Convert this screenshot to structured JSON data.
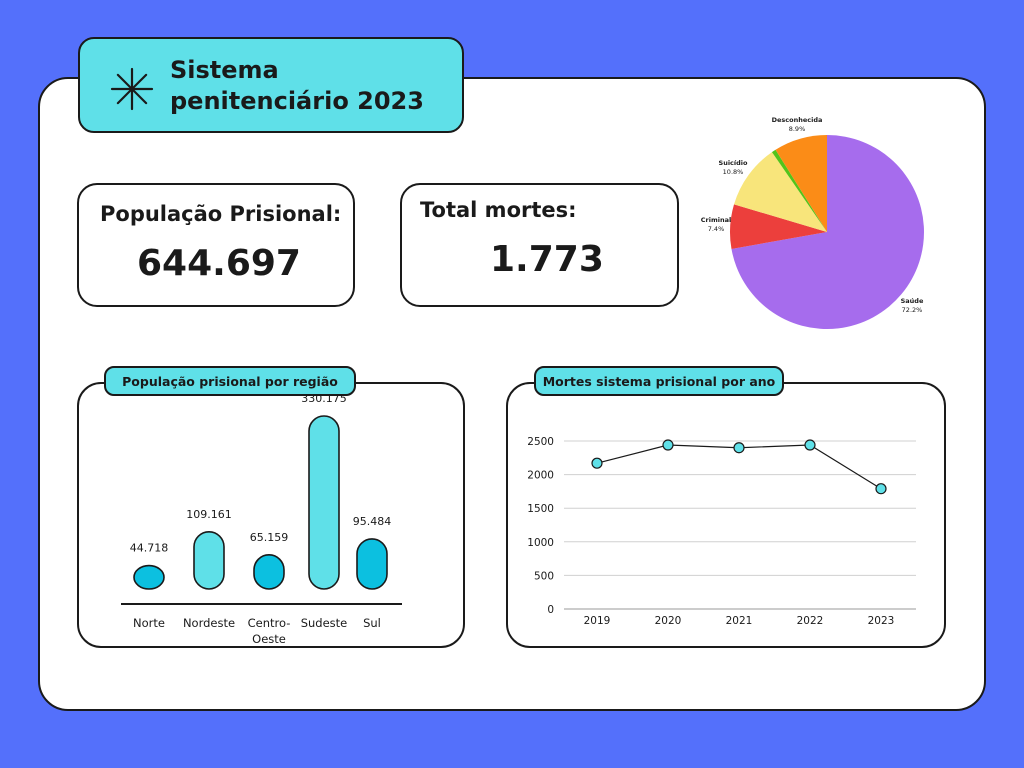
{
  "header": {
    "title_line1": "Sistema",
    "title_line2": "penitenciário 2023",
    "icon": "asterisk-icon"
  },
  "stats": {
    "population": {
      "label": "População Prisional:",
      "value": "644.697"
    },
    "deaths": {
      "label": "Total mortes:",
      "value": "1.773"
    }
  },
  "colors": {
    "background": "#5470fb",
    "accent": "#5fe0e8",
    "bar_alt": "#0cc0e0"
  },
  "chart_data": [
    {
      "type": "pie",
      "categories": [
        "Saúde",
        "Criminal",
        "Suicídio",
        "",
        "Desconhecida"
      ],
      "values": [
        72.2,
        7.4,
        10.8,
        0.7,
        8.9
      ],
      "labels": [
        {
          "name": "Saúde",
          "value": "72.2%"
        },
        {
          "name": "Criminal",
          "value": "7.4%"
        },
        {
          "name": "Suicídio",
          "value": "10.8%"
        },
        {
          "name": "Desconhecida",
          "value": "8.9%"
        }
      ],
      "colors": [
        "#a66ced",
        "#ec3f3c",
        "#f8e57b",
        "#52c41a",
        "#fb8c17"
      ]
    },
    {
      "type": "bar",
      "title": "População prisional por região",
      "categories": [
        "Norte",
        "Nordeste",
        "Centro-Oeste",
        "Sudeste",
        "Sul"
      ],
      "category_lines": [
        [
          "Norte"
        ],
        [
          "Nordeste"
        ],
        [
          "Centro-",
          "Oeste"
        ],
        [
          "Sudeste"
        ],
        [
          "Sul"
        ]
      ],
      "values": [
        44718,
        109161,
        65159,
        330175,
        95484
      ],
      "value_labels": [
        "44.718",
        "109.161",
        "65.159",
        "330.175",
        "95.484"
      ],
      "colors": [
        "#0cc0e0",
        "#5fe0e8",
        "#0cc0e0",
        "#5fe0e8",
        "#0cc0e0"
      ]
    },
    {
      "type": "line",
      "title": "Mortes sistema prisional por ano",
      "x": [
        "2019",
        "2020",
        "2021",
        "2022",
        "2023"
      ],
      "y": [
        2170,
        2440,
        2400,
        2440,
        1790
      ],
      "ylim": [
        0,
        2500
      ],
      "yticks": [
        0,
        500,
        1000,
        1500,
        2000,
        2500
      ],
      "grid": true
    }
  ]
}
